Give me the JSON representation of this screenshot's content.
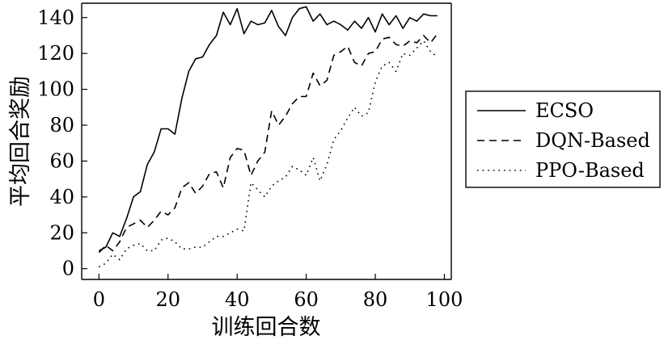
{
  "chart_data": {
    "type": "line",
    "title": "",
    "xlabel": "训练回合数",
    "ylabel": "平均回合奖励",
    "xlim": [
      -5,
      102
    ],
    "ylim": [
      -6,
      148
    ],
    "xticks": [
      0,
      20,
      40,
      60,
      80,
      100
    ],
    "yticks": [
      0,
      20,
      40,
      60,
      80,
      100,
      120,
      140
    ],
    "grid": false,
    "legend_position": "outside-right",
    "x": [
      0,
      2,
      4,
      6,
      8,
      10,
      12,
      14,
      16,
      18,
      20,
      22,
      24,
      26,
      28,
      30,
      32,
      34,
      36,
      38,
      40,
      42,
      44,
      46,
      48,
      50,
      52,
      54,
      56,
      58,
      60,
      62,
      64,
      66,
      68,
      70,
      72,
      74,
      76,
      78,
      80,
      82,
      84,
      86,
      88,
      90,
      92,
      94,
      96,
      98
    ],
    "series": [
      {
        "name": "ECSO",
        "style": "solid",
        "values": [
          10,
          12,
          20,
          18,
          28,
          40,
          43,
          58,
          65,
          78,
          78,
          75,
          95,
          110,
          117,
          118,
          125,
          130,
          143,
          136,
          145,
          131,
          138,
          136,
          137,
          144,
          135,
          130,
          140,
          145,
          146,
          138,
          142,
          136,
          138,
          136,
          133,
          138,
          134,
          140,
          132,
          142,
          136,
          141,
          134,
          140,
          138,
          142,
          141,
          141
        ]
      },
      {
        "name": "DQN-Based",
        "style": "dashed",
        "values": [
          9,
          13,
          10,
          15,
          23,
          25,
          27,
          23,
          27,
          32,
          30,
          34,
          45,
          48,
          42,
          46,
          53,
          54,
          45,
          62,
          67,
          66,
          52,
          60,
          65,
          88,
          80,
          85,
          92,
          96,
          96,
          109,
          102,
          105,
          119,
          121,
          124,
          115,
          113,
          120,
          121,
          128,
          129,
          125,
          124,
          127,
          126,
          130,
          126,
          131
        ]
      },
      {
        "name": "PPO-Based",
        "style": "dotted",
        "values": [
          1,
          3,
          8,
          5,
          11,
          13,
          14,
          10,
          10,
          16,
          17,
          15,
          11,
          11,
          12,
          12,
          15,
          18,
          18,
          20,
          22,
          21,
          48,
          44,
          40,
          46,
          49,
          51,
          57,
          55,
          52,
          62,
          49,
          58,
          72,
          77,
          84,
          90,
          85,
          87,
          104,
          113,
          115,
          110,
          120,
          119,
          123,
          127,
          121,
          118
        ]
      }
    ]
  }
}
